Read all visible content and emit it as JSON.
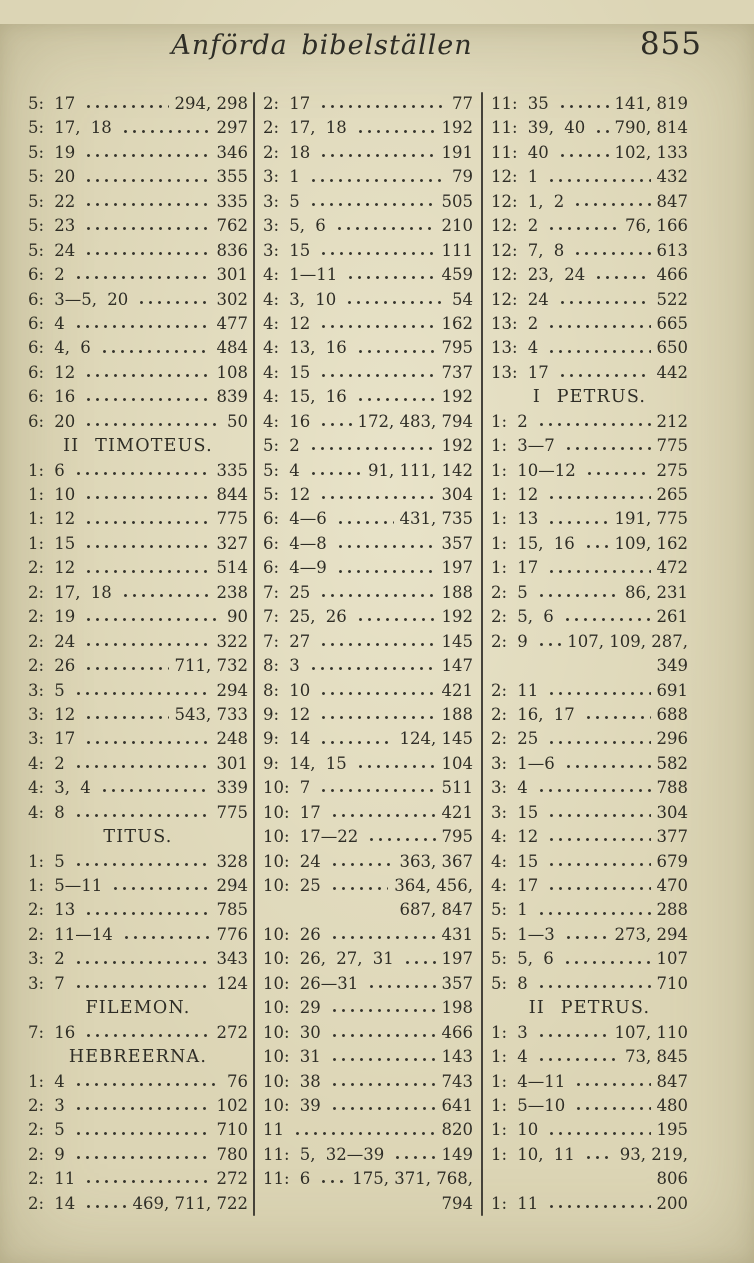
{
  "page": {
    "title": "Anförda bibelställen",
    "page_number": "855"
  },
  "columns": [
    {
      "name": "column-1",
      "rows": [
        {
          "type": "entry",
          "ref": "5: 17",
          "pages": "294, 298"
        },
        {
          "type": "entry",
          "ref": "5: 17, 18",
          "pages": "297"
        },
        {
          "type": "entry",
          "ref": "5: 19",
          "pages": "346"
        },
        {
          "type": "entry",
          "ref": "5: 20",
          "pages": "355"
        },
        {
          "type": "entry",
          "ref": "5: 22",
          "pages": "335"
        },
        {
          "type": "entry",
          "ref": "5: 23",
          "pages": "762"
        },
        {
          "type": "entry",
          "ref": "5: 24",
          "pages": "836"
        },
        {
          "type": "entry",
          "ref": "6: 2",
          "pages": "301"
        },
        {
          "type": "entry",
          "ref": "6: 3—5, 20",
          "pages": "302"
        },
        {
          "type": "entry",
          "ref": "6: 4",
          "pages": "477"
        },
        {
          "type": "entry",
          "ref": "6: 4, 6",
          "pages": "484"
        },
        {
          "type": "entry",
          "ref": "6: 12",
          "pages": "108"
        },
        {
          "type": "entry",
          "ref": "6: 16",
          "pages": "839"
        },
        {
          "type": "entry",
          "ref": "6: 20",
          "pages": "50"
        },
        {
          "type": "heading",
          "label": "II TIMOTEUS."
        },
        {
          "type": "entry",
          "ref": "1: 6",
          "pages": "335"
        },
        {
          "type": "entry",
          "ref": "1: 10",
          "pages": "844"
        },
        {
          "type": "entry",
          "ref": "1: 12",
          "pages": "775"
        },
        {
          "type": "entry",
          "ref": "1: 15",
          "pages": "327"
        },
        {
          "type": "entry",
          "ref": "2: 12",
          "pages": "514"
        },
        {
          "type": "entry",
          "ref": "2: 17, 18",
          "pages": "238"
        },
        {
          "type": "entry",
          "ref": "2: 19",
          "pages": "90"
        },
        {
          "type": "entry",
          "ref": "2: 24",
          "pages": "322"
        },
        {
          "type": "entry",
          "ref": "2: 26",
          "pages": "711, 732"
        },
        {
          "type": "entry",
          "ref": "3: 5",
          "pages": "294"
        },
        {
          "type": "entry",
          "ref": "3: 12",
          "pages": "543, 733"
        },
        {
          "type": "entry",
          "ref": "3: 17",
          "pages": "248"
        },
        {
          "type": "entry",
          "ref": "4: 2",
          "pages": "301"
        },
        {
          "type": "entry",
          "ref": "4: 3, 4",
          "pages": "339"
        },
        {
          "type": "entry",
          "ref": "4: 8",
          "pages": "775"
        },
        {
          "type": "heading",
          "label": "TITUS."
        },
        {
          "type": "entry",
          "ref": "1: 5",
          "pages": "328"
        },
        {
          "type": "entry",
          "ref": "1: 5—11",
          "pages": "294"
        },
        {
          "type": "entry",
          "ref": "2: 13",
          "pages": "785"
        },
        {
          "type": "entry",
          "ref": "2: 11—14",
          "pages": "776"
        },
        {
          "type": "entry",
          "ref": "3: 2",
          "pages": "343"
        },
        {
          "type": "entry",
          "ref": "3: 7",
          "pages": "124"
        },
        {
          "type": "heading",
          "label": "FILEMON."
        },
        {
          "type": "entry",
          "ref": "7: 16",
          "pages": "272"
        },
        {
          "type": "heading",
          "label": "HEBREERNA."
        },
        {
          "type": "entry",
          "ref": "1: 4",
          "pages": "76"
        },
        {
          "type": "entry",
          "ref": "2: 3",
          "pages": "102"
        },
        {
          "type": "entry",
          "ref": "2: 5",
          "pages": "710"
        },
        {
          "type": "entry",
          "ref": "2: 9",
          "pages": "780"
        },
        {
          "type": "entry",
          "ref": "2: 11",
          "pages": "272"
        },
        {
          "type": "entry",
          "ref": "2: 14",
          "pages": "469, 711, 722"
        }
      ]
    },
    {
      "name": "column-2",
      "rows": [
        {
          "type": "entry",
          "ref": "2: 17",
          "pages": "77"
        },
        {
          "type": "entry",
          "ref": "2: 17, 18",
          "pages": "192"
        },
        {
          "type": "entry",
          "ref": "2: 18",
          "pages": "191"
        },
        {
          "type": "entry",
          "ref": "3: 1",
          "pages": "79"
        },
        {
          "type": "entry",
          "ref": "3: 5",
          "pages": "505"
        },
        {
          "type": "entry",
          "ref": "3: 5, 6",
          "pages": "210"
        },
        {
          "type": "entry",
          "ref": "3: 15",
          "pages": "111"
        },
        {
          "type": "entry",
          "ref": "4: 1—11",
          "pages": "459"
        },
        {
          "type": "entry",
          "ref": "4: 3, 10",
          "pages": "54"
        },
        {
          "type": "entry",
          "ref": "4: 12",
          "pages": "162"
        },
        {
          "type": "entry",
          "ref": "4: 13, 16",
          "pages": "795"
        },
        {
          "type": "entry",
          "ref": "4: 15",
          "pages": "737"
        },
        {
          "type": "entry",
          "ref": "4: 15, 16",
          "pages": "192"
        },
        {
          "type": "entry",
          "ref": "4: 16",
          "pages": "172, 483, 794"
        },
        {
          "type": "entry",
          "ref": "5: 2",
          "pages": "192"
        },
        {
          "type": "entry",
          "ref": "5: 4",
          "pages": "91, 111, 142"
        },
        {
          "type": "entry",
          "ref": "5: 12",
          "pages": "304"
        },
        {
          "type": "entry",
          "ref": "6: 4—6",
          "pages": "431, 735"
        },
        {
          "type": "entry",
          "ref": "6: 4—8",
          "pages": "357"
        },
        {
          "type": "entry",
          "ref": "6: 4—9",
          "pages": "197"
        },
        {
          "type": "entry",
          "ref": "7: 25",
          "pages": "188"
        },
        {
          "type": "entry",
          "ref": "7: 25, 26",
          "pages": "192"
        },
        {
          "type": "entry",
          "ref": "7: 27",
          "pages": "145"
        },
        {
          "type": "entry",
          "ref": "8: 3",
          "pages": "147"
        },
        {
          "type": "entry",
          "ref": "8: 10",
          "pages": "421"
        },
        {
          "type": "entry",
          "ref": "9: 12",
          "pages": "188"
        },
        {
          "type": "entry",
          "ref": "9: 14",
          "pages": "124, 145"
        },
        {
          "type": "entry",
          "ref": "9: 14, 15",
          "pages": "104"
        },
        {
          "type": "entry",
          "ref": "10: 7",
          "pages": "511"
        },
        {
          "type": "entry",
          "ref": "10: 17",
          "pages": "421"
        },
        {
          "type": "entry",
          "ref": "10: 17—22",
          "pages": "795"
        },
        {
          "type": "entry",
          "ref": "10: 24",
          "pages": "363, 367"
        },
        {
          "type": "entry",
          "ref": "10: 25",
          "pages": "364, 456,"
        },
        {
          "type": "cont",
          "pages": "687, 847"
        },
        {
          "type": "entry",
          "ref": "10: 26",
          "pages": "431"
        },
        {
          "type": "entry",
          "ref": "10: 26, 27, 31",
          "pages": "197"
        },
        {
          "type": "entry",
          "ref": "10: 26—31",
          "pages": "357"
        },
        {
          "type": "entry",
          "ref": "10: 29",
          "pages": "198"
        },
        {
          "type": "entry",
          "ref": "10: 30",
          "pages": "466"
        },
        {
          "type": "entry",
          "ref": "10: 31",
          "pages": "143"
        },
        {
          "type": "entry",
          "ref": "10: 38",
          "pages": "743"
        },
        {
          "type": "entry",
          "ref": "10: 39",
          "pages": "641"
        },
        {
          "type": "entry",
          "ref": "11",
          "pages": "820"
        },
        {
          "type": "entry",
          "ref": "11: 5, 32—39",
          "pages": "149"
        },
        {
          "type": "entry",
          "ref": "11: 6",
          "pages": "175, 371, 768,"
        },
        {
          "type": "cont",
          "pages": "794"
        }
      ]
    },
    {
      "name": "column-3",
      "rows": [
        {
          "type": "entry",
          "ref": "11: 35",
          "pages": "141, 819"
        },
        {
          "type": "entry",
          "ref": "11: 39, 40",
          "pages": "790, 814"
        },
        {
          "type": "entry",
          "ref": "11: 40",
          "pages": "102, 133"
        },
        {
          "type": "entry",
          "ref": "12: 1",
          "pages": "432"
        },
        {
          "type": "entry",
          "ref": "12: 1, 2",
          "pages": "847"
        },
        {
          "type": "entry",
          "ref": "12: 2",
          "pages": "76, 166"
        },
        {
          "type": "entry",
          "ref": "12: 7, 8",
          "pages": "613"
        },
        {
          "type": "entry",
          "ref": "12: 23, 24",
          "pages": "466"
        },
        {
          "type": "entry",
          "ref": "12: 24",
          "pages": "522"
        },
        {
          "type": "entry",
          "ref": "13: 2",
          "pages": "665"
        },
        {
          "type": "entry",
          "ref": "13: 4",
          "pages": "650"
        },
        {
          "type": "entry",
          "ref": "13: 17",
          "pages": "442"
        },
        {
          "type": "heading",
          "label": "I PETRUS."
        },
        {
          "type": "entry",
          "ref": "1: 2",
          "pages": "212"
        },
        {
          "type": "entry",
          "ref": "1: 3—7",
          "pages": "775"
        },
        {
          "type": "entry",
          "ref": "1: 10—12",
          "pages": "275"
        },
        {
          "type": "entry",
          "ref": "1: 12",
          "pages": "265"
        },
        {
          "type": "entry",
          "ref": "1: 13",
          "pages": "191, 775"
        },
        {
          "type": "entry",
          "ref": "1: 15, 16",
          "pages": "109, 162"
        },
        {
          "type": "entry",
          "ref": "1: 17",
          "pages": "472"
        },
        {
          "type": "entry",
          "ref": "2: 5",
          "pages": "86, 231"
        },
        {
          "type": "entry",
          "ref": "2: 5, 6",
          "pages": "261"
        },
        {
          "type": "entry",
          "ref": "2: 9",
          "pages": "107, 109, 287,"
        },
        {
          "type": "cont",
          "pages": "349"
        },
        {
          "type": "entry",
          "ref": "2: 11",
          "pages": "691"
        },
        {
          "type": "entry",
          "ref": "2: 16, 17",
          "pages": "688"
        },
        {
          "type": "entry",
          "ref": "2: 25",
          "pages": "296"
        },
        {
          "type": "entry",
          "ref": "3: 1—6",
          "pages": "582"
        },
        {
          "type": "entry",
          "ref": "3: 4",
          "pages": "788"
        },
        {
          "type": "entry",
          "ref": "3: 15",
          "pages": "304"
        },
        {
          "type": "entry",
          "ref": "4: 12",
          "pages": "377"
        },
        {
          "type": "entry",
          "ref": "4: 15",
          "pages": "679"
        },
        {
          "type": "entry",
          "ref": "4: 17",
          "pages": "470"
        },
        {
          "type": "entry",
          "ref": "5: 1",
          "pages": "288"
        },
        {
          "type": "entry",
          "ref": "5: 1—3",
          "pages": "273, 294"
        },
        {
          "type": "entry",
          "ref": "5: 5, 6",
          "pages": "107"
        },
        {
          "type": "entry",
          "ref": "5: 8",
          "pages": "710"
        },
        {
          "type": "heading",
          "label": "II PETRUS."
        },
        {
          "type": "entry",
          "ref": "1: 3",
          "pages": "107, 110"
        },
        {
          "type": "entry",
          "ref": "1: 4",
          "pages": "73, 845"
        },
        {
          "type": "entry",
          "ref": "1: 4—11",
          "pages": "847"
        },
        {
          "type": "entry",
          "ref": "1: 5—10",
          "pages": "480"
        },
        {
          "type": "entry",
          "ref": "1: 10",
          "pages": "195"
        },
        {
          "type": "entry",
          "ref": "1: 10, 11",
          "pages": "93, 219,"
        },
        {
          "type": "cont",
          "pages": "806"
        },
        {
          "type": "entry",
          "ref": "1: 11",
          "pages": "200"
        }
      ]
    }
  ]
}
